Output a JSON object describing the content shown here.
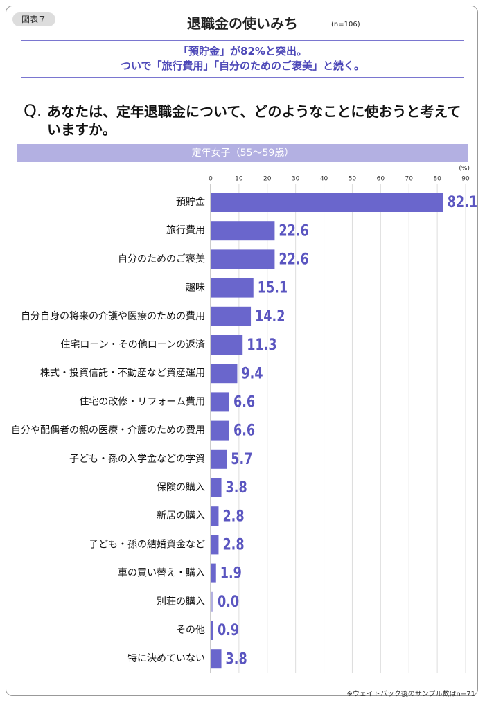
{
  "chart_data": {
    "type": "bar",
    "orientation": "horizontal",
    "badge": "図表７",
    "title": "退職金の使いみち",
    "subtitle": "(n=106)",
    "highlight": [
      "「預貯金」が82%と突出。",
      "ついで「旅行費用」「自分のためのご褒美」と続く。"
    ],
    "question_label": "Q.",
    "question": "あなたは、定年退職金について、どのようなことに使おうと考えていますか。",
    "group_label": "定年女子（55〜59歳）",
    "unit_label": "(%)",
    "footnote": "※ウェイトバック後のサンプル数はn=71",
    "categories": [
      "預貯金",
      "旅行費用",
      "自分のためのご褒美",
      "趣味",
      "自分自身の将来の介護や医療のための費用",
      "住宅ローン・その他ローンの返済",
      "株式・投資信託・不動産など資産運用",
      "住宅の改修・リフォーム費用",
      "自分や配偶者の親の医療・介護のための費用",
      "子ども・孫の入学金などの学資",
      "保険の購入",
      "新居の購入",
      "子ども・孫の結婚資金など",
      "車の買い替え・購入",
      "別荘の購入",
      "その他",
      "特に決めていない"
    ],
    "values": [
      82.1,
      22.6,
      22.6,
      15.1,
      14.2,
      11.3,
      9.4,
      6.6,
      6.6,
      5.7,
      3.8,
      2.8,
      2.8,
      1.9,
      0,
      0.9,
      3.8
    ],
    "value_labels": [
      "82.1",
      "22.6",
      "22.6",
      "15.1",
      "14.2",
      "11.3",
      "9.4",
      "6.6",
      "6.6",
      "5.7",
      "3.8",
      "2.8",
      "2.8",
      "1.9",
      "0.0",
      "0.9",
      "3.8"
    ],
    "color": "#6a66cc",
    "xlim": [
      0,
      90
    ],
    "xticks": [
      0,
      10,
      20,
      30,
      40,
      50,
      60,
      70,
      80,
      90
    ],
    "grid": true
  }
}
